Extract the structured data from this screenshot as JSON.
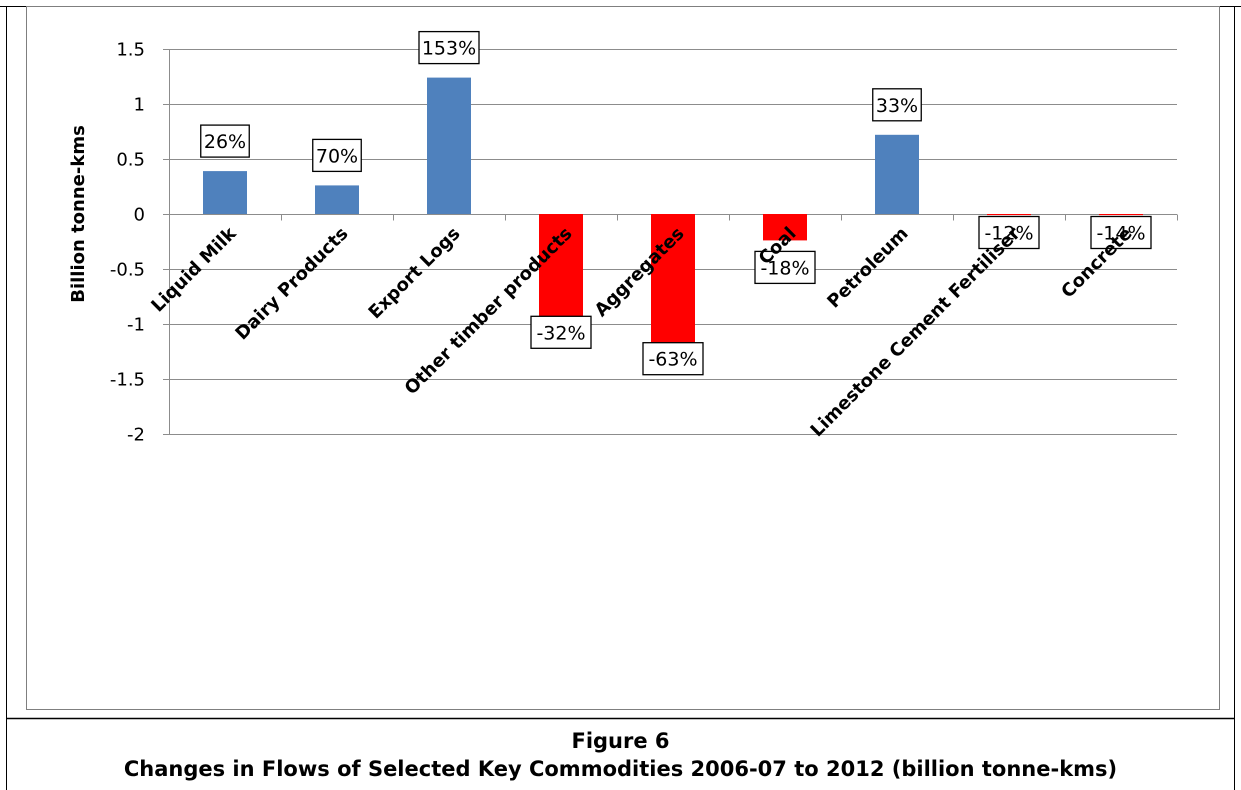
{
  "caption": {
    "figure_number": "Figure 6",
    "title": "Changes in Flows of Selected Key Commodities 2006-07 to 2012 (billion tonne-kms)"
  },
  "chart_data": {
    "type": "bar",
    "title": "",
    "xlabel": "",
    "ylabel": "Billion tonne-kms",
    "ylim": [
      -2,
      1.5
    ],
    "yticks": [
      1.5,
      1,
      0.5,
      0,
      -0.5,
      -1,
      -1.5,
      -2
    ],
    "ytick_labels": [
      "1.5",
      "1",
      "0.5",
      "0",
      "-0.5",
      "-1",
      "-1.5",
      "-2"
    ],
    "grid": true,
    "legend": "none",
    "positive_color": "#4F81BD",
    "negative_color": "#FF0000",
    "categories": [
      "Liquid Milk",
      "Dairy Products",
      "Export Logs",
      "Other timber products",
      "Aggregates",
      "Coal",
      "Petroleum",
      "Limestone Cement Fertiliser",
      "Concrete"
    ],
    "values": [
      0.39,
      0.26,
      1.24,
      -1.03,
      -1.27,
      -0.24,
      0.72,
      -0.01,
      -0.01
    ],
    "data_labels": [
      "26%",
      "70%",
      "153%",
      "-32%",
      "-63%",
      "-18%",
      "33%",
      "-12%",
      "-14%"
    ]
  }
}
